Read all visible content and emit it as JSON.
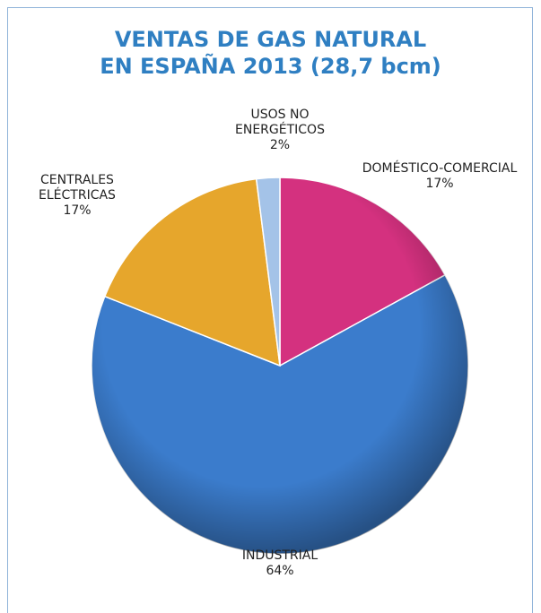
{
  "chart_data": {
    "type": "pie",
    "title": [
      "VENTAS DE GAS NATURAL",
      "EN ESPAÑA 2013 (28,7 bcm)"
    ],
    "categories": [
      "DOMÉSTICO-COMERCIAL",
      "INDUSTRIAL",
      "CENTRALES ELÉCTRICAS",
      "USOS NO ENERGÉTICOS"
    ],
    "values": [
      17,
      64,
      17,
      2
    ],
    "value_labels": [
      "17%",
      "64%",
      "17%",
      "2%"
    ],
    "colors": [
      "#d4317f",
      "#3b7ccc",
      "#e6a62c",
      "#a4c3e8"
    ]
  }
}
